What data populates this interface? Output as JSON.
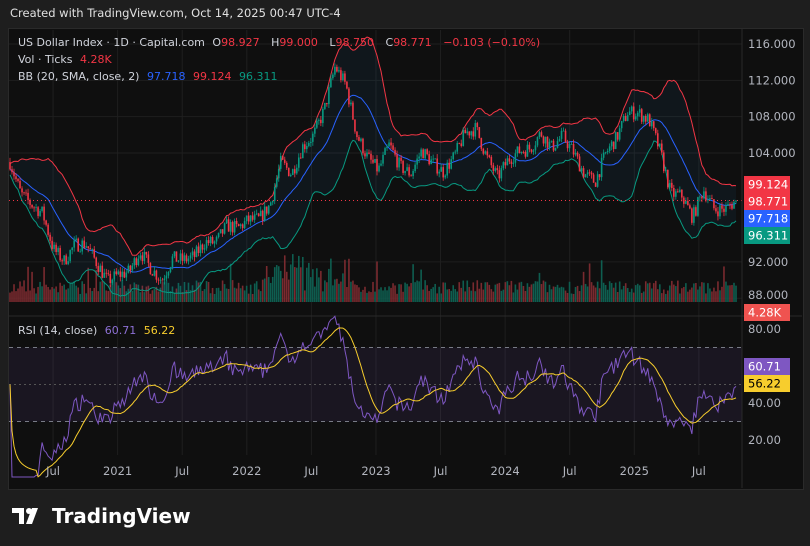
{
  "header": {
    "created": "Created with TradingView.com, Oct 14, 2025 00:47 UTC-4"
  },
  "legend": {
    "symbol": "US Dollar Index · 1D · Capital.com",
    "o_label": "O",
    "o": "98.927",
    "h_label": "H",
    "h": "99.000",
    "l_label": "L",
    "l": "98.750",
    "c_label": "C",
    "c": "98.771",
    "change": "−0.103 (−0.10%)",
    "vol_label": "Vol · Ticks",
    "vol": "4.28K",
    "bb_label": "BB (20, SMA, close, 2)",
    "bb_basis": "97.718",
    "bb_upper": "99.124",
    "bb_lower": "96.311",
    "rsi_label": "RSI (14, close)",
    "rsi": "60.71",
    "rsi_ma": "56.22"
  },
  "footer": {
    "brand": "TradingView"
  },
  "colors": {
    "up": "#089981",
    "down": "#f23645",
    "basis": "#2962ff",
    "upper": "#f23645",
    "lower": "#089981",
    "rsi": "#7e57c2",
    "rsi_ma": "#f7cd2d"
  },
  "chart_data": {
    "type": "candlestick",
    "title": "US Dollar Index · 1D · Capital.com",
    "price_ticks": [
      "116.000",
      "112.000",
      "108.000",
      "104.000",
      "92.000",
      "88.000"
    ],
    "price_tick_values": [
      116,
      112,
      108,
      104,
      92,
      88
    ],
    "ylim": [
      86.5,
      117.5
    ],
    "rsi_ticks": [
      "80.00",
      "40.00",
      "20.00"
    ],
    "rsi_tick_values": [
      80,
      40,
      20
    ],
    "rsi_bands": [
      70,
      30
    ],
    "x_ticks": [
      "Jul",
      "2021",
      "Jul",
      "2022",
      "Jul",
      "2023",
      "Jul",
      "2024",
      "Jul",
      "2025",
      "Jul"
    ],
    "x_tick_months": [
      4,
      10,
      16,
      22,
      28,
      34,
      40,
      46,
      52,
      58,
      64
    ],
    "monthly_close_start": "Mar 2020",
    "monthly_close": [
      103,
      99.5,
      98.3,
      97.4,
      93.4,
      92.1,
      93.9,
      94,
      91.9,
      89.9,
      90.6,
      90.9,
      93.2,
      91.3,
      90,
      92.4,
      92.2,
      92.6,
      94.2,
      94.1,
      96,
      95.7,
      96.6,
      96.7,
      98.3,
      103,
      101.7,
      104.7,
      105.9,
      108.7,
      113.5,
      111.5,
      106,
      103.5,
      102.1,
      104.9,
      102.5,
      101.7,
      104.3,
      102.9,
      101.9,
      103.6,
      106.2,
      106.7,
      103.5,
      101.3,
      103.3,
      104.2,
      104.5,
      106.2,
      104.6,
      105.9,
      104.1,
      101.7,
      100.8,
      104,
      105.7,
      108.5,
      108.4,
      107.6,
      104.2,
      99.5,
      99.3,
      96.9,
      100,
      97.8,
      97.8,
      98.771
    ],
    "last_labels": {
      "upper": "99.124",
      "close": "98.771",
      "basis": "97.718",
      "lower": "96.311",
      "volume": "4.28K",
      "rsi": "60.71",
      "rsi_ma": "56.22"
    }
  }
}
